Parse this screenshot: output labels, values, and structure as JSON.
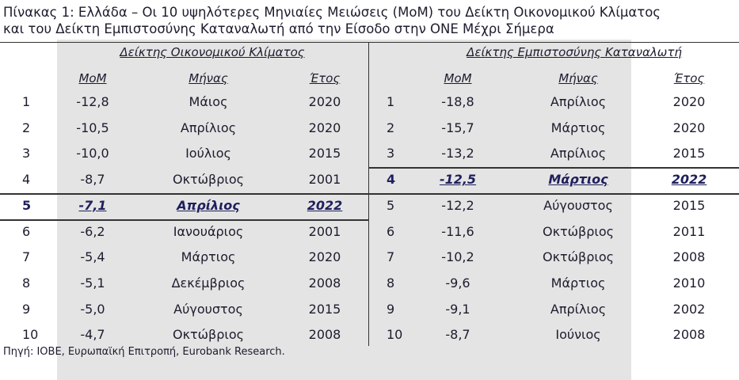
{
  "title": [
    "Πίνακας 1: Ελλάδα – Οι 10 υψηλότερες Μηνιαίες Μειώσεις (MoM) του Δείκτη Οικονομικού Κλίματος",
    "και του Δείκτη Εμπιστοσύνης Καταναλωτή από την Είσοδο στην ONE Μέχρι Σήμερα"
  ],
  "panels": [
    {
      "heading": "Δείκτης Οικονομικού Κλίματος",
      "columns": [
        "MoM",
        "Μήνας",
        "Έτος"
      ],
      "rows": [
        {
          "cells": [
            "1",
            "-12,8",
            "Μάιος",
            "2020"
          ]
        },
        {
          "cells": [
            "2",
            "-10,5",
            "Απρίλιος",
            "2020"
          ]
        },
        {
          "cells": [
            "3",
            "-10,0",
            "Ιούλιος",
            "2015"
          ]
        },
        {
          "cells": [
            "4",
            "-8,7",
            "Οκτώβριος",
            "2001"
          ]
        },
        {
          "cells": [
            "5",
            "-7,1",
            "Απρίλιος",
            "2022"
          ],
          "highlighted": true
        },
        {
          "cells": [
            "6",
            "-6,2",
            "Ιανουάριος",
            "2001"
          ]
        },
        {
          "cells": [
            "7",
            "-5,4",
            "Μάρτιος",
            "2020"
          ]
        },
        {
          "cells": [
            "8",
            "-5,1",
            "Δεκέμβριος",
            "2008"
          ]
        },
        {
          "cells": [
            "9",
            "-5,0",
            "Αύγουστος",
            "2015"
          ]
        },
        {
          "cells": [
            "10",
            "-4,7",
            "Οκτώβριος",
            "2008"
          ]
        }
      ]
    },
    {
      "heading": "Δείκτης Εμπιστοσύνης Καταναλωτή",
      "columns": [
        "MoM",
        "Μήνας",
        "Έτος"
      ],
      "rows": [
        {
          "cells": [
            "1",
            "-18,8",
            "Απρίλιος",
            "2020"
          ]
        },
        {
          "cells": [
            "2",
            "-15,7",
            "Μάρτιος",
            "2020"
          ]
        },
        {
          "cells": [
            "3",
            "-13,2",
            "Απρίλιος",
            "2015"
          ]
        },
        {
          "cells": [
            "4",
            "-12,5",
            "Μάρτιος",
            "2022"
          ],
          "highlighted": true
        },
        {
          "cells": [
            "5",
            "-12,2",
            "Αύγουστος",
            "2015"
          ]
        },
        {
          "cells": [
            "6",
            "-11,6",
            "Οκτώβριος",
            "2011"
          ]
        },
        {
          "cells": [
            "7",
            "-10,2",
            "Οκτώβριος",
            "2008"
          ]
        },
        {
          "cells": [
            "8",
            "-9,6",
            "Μάρτιος",
            "2010"
          ]
        },
        {
          "cells": [
            "9",
            "-9,1",
            "Απρίλιος",
            "2002"
          ]
        },
        {
          "cells": [
            "10",
            "-8,7",
            "Ιούνιος",
            "2008"
          ]
        }
      ]
    }
  ],
  "source": "Πηγή: ΙΟΒΕ, Ευρωπαϊκή Επιτροπή, Eurobank Research."
}
